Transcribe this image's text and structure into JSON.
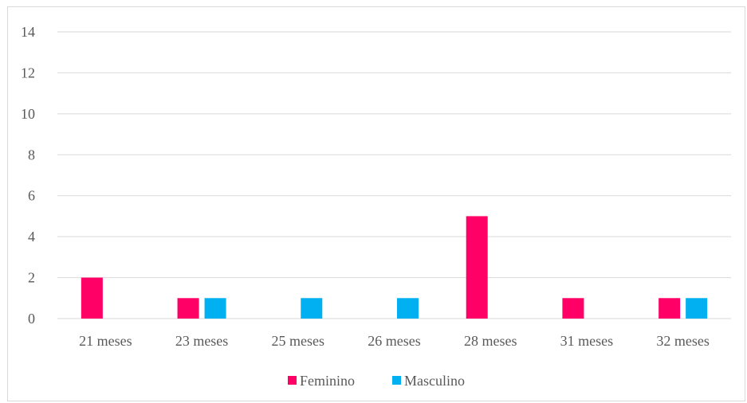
{
  "chart_data": {
    "type": "bar",
    "categories": [
      "21 meses",
      "23 meses",
      "25 meses",
      "26 meses",
      "28 meses",
      "31 meses",
      "32 meses"
    ],
    "series": [
      {
        "name": "Feminino",
        "values": [
          2,
          1,
          0,
          0,
          5,
          1,
          1
        ],
        "color": "#ff0066"
      },
      {
        "name": "Masculino",
        "values": [
          0,
          1,
          1,
          1,
          0,
          0,
          1
        ],
        "color": "#00b0f0"
      }
    ],
    "y_ticks": [
      "0",
      "2",
      "4",
      "6",
      "8",
      "10",
      "12",
      "14"
    ],
    "ylim": [
      0,
      14
    ],
    "grid": true,
    "legend_position": "bottom"
  }
}
